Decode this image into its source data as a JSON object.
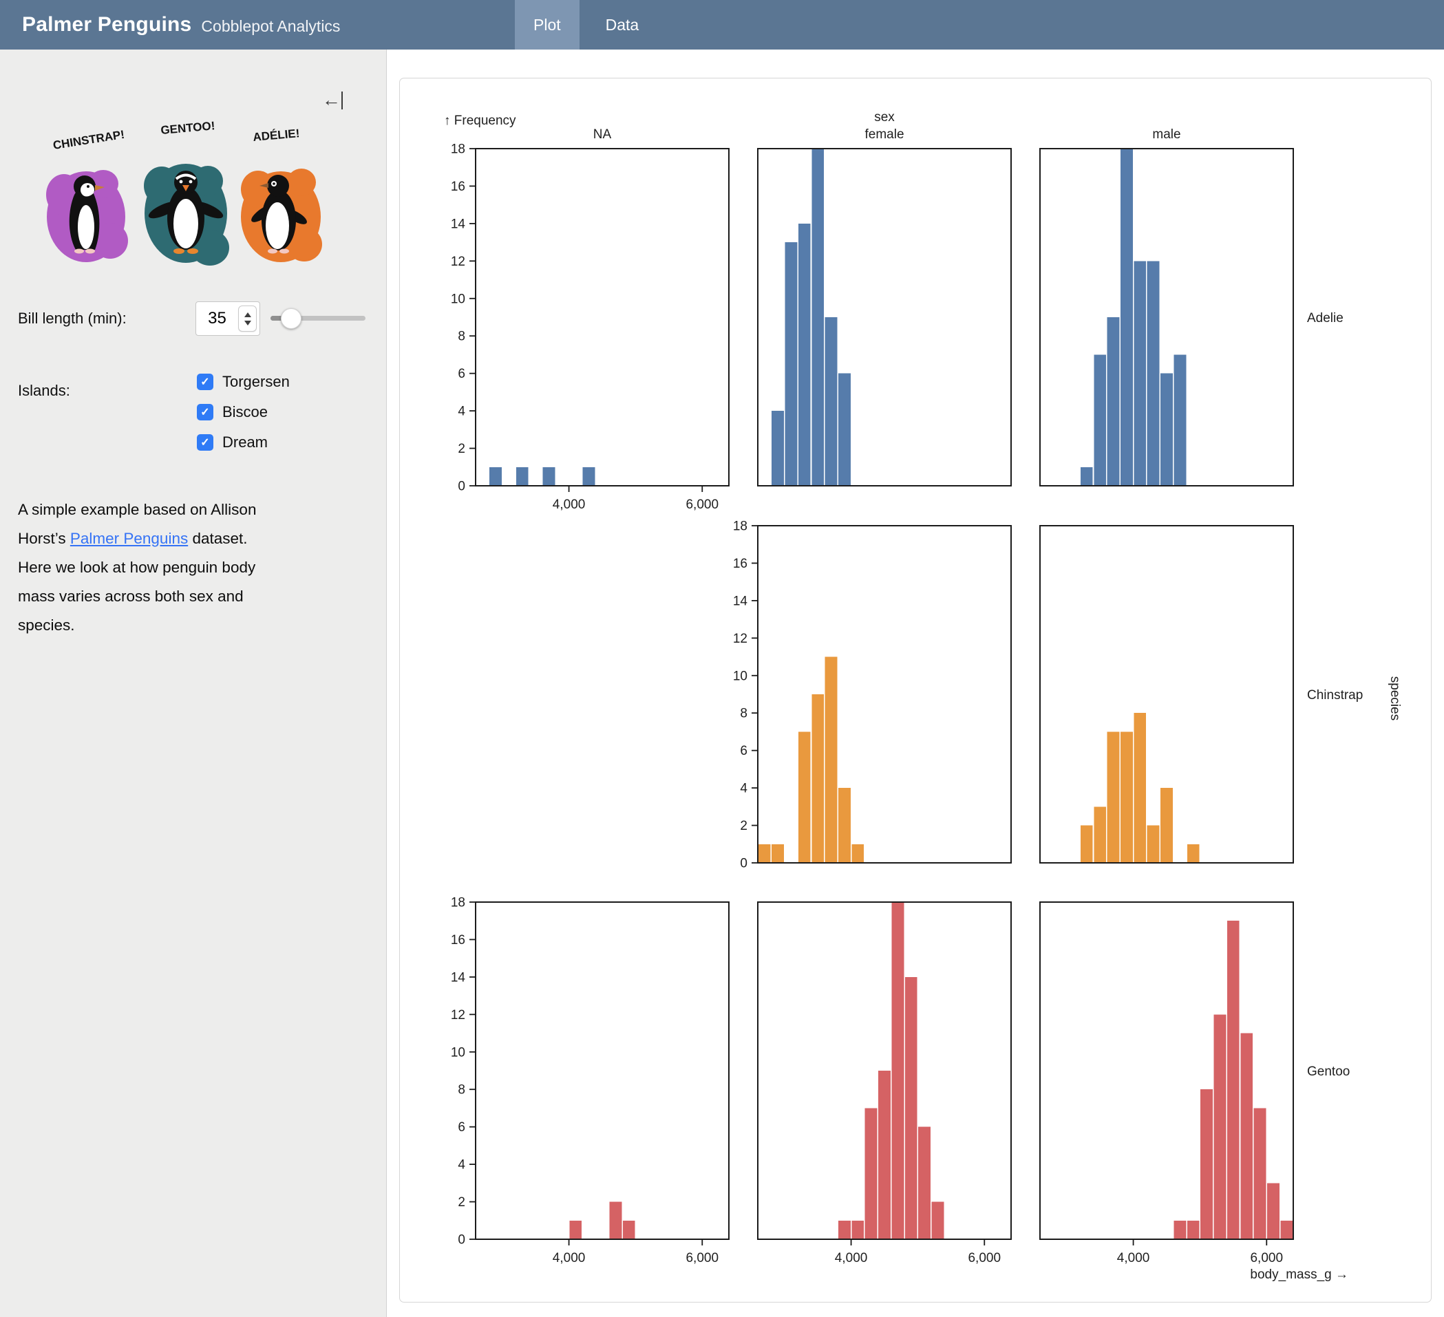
{
  "header": {
    "title": "Palmer Penguins",
    "subtitle": "Cobblepot Analytics",
    "tabs": [
      "Plot",
      "Data"
    ],
    "colors": {
      "bar": "#5b7693",
      "active_tab": "#7e96b2"
    }
  },
  "sidebar": {
    "collapse_icon": "←",
    "artwork": {
      "labels": [
        "CHINSTRAP!",
        "GENTOO!",
        "ADÉLIE!"
      ],
      "splash_colors": [
        "#b15bc4",
        "#2e6b72",
        "#e8792d"
      ]
    },
    "bill_length": {
      "label": "Bill length (min):",
      "value": "35"
    },
    "islands": {
      "label": "Islands:",
      "options": [
        {
          "label": "Torgersen",
          "checked": true
        },
        {
          "label": "Biscoe",
          "checked": true
        },
        {
          "label": "Dream",
          "checked": true
        }
      ]
    },
    "icons": {
      "check": "✓"
    },
    "description": {
      "line1": "A simple example based on Allison",
      "line2_pre": "Horst’s ",
      "line2_link": "Palmer Penguins",
      "line2_post": " dataset.",
      "line3": "Here we look at how penguin body",
      "line4": "mass varies across both sex and",
      "line5": "species."
    }
  },
  "chart_data": {
    "type": "bar",
    "subtype": "faceted-histogram",
    "x_field": "body_mass_g",
    "x_axis_label": "body_mass_g →",
    "y_axis_label": "↑ Frequency",
    "right_axis_label": "species",
    "x_domain": [
      2600,
      6400
    ],
    "y_domain": [
      0,
      18
    ],
    "bin_width": 200,
    "grid": false,
    "x_ticks": [
      {
        "value": 4000,
        "label": "4,000"
      },
      {
        "value": 6000,
        "label": "6,000"
      }
    ],
    "y_tick_step": 2,
    "col_headers": [
      [
        "NA"
      ],
      [
        "sex",
        "female"
      ],
      [
        "male"
      ]
    ],
    "row_labels": [
      "Adelie",
      "Chinstrap",
      "Gentoo"
    ],
    "colors": {
      "Adelie": "#567cab",
      "Chinstrap": "#e9993e",
      "Gentoo": "#d56264"
    },
    "facets": [
      {
        "species": "Adelie",
        "sex": "NA",
        "row": 0,
        "col": 0,
        "x_axis": true,
        "bins": [
          [
            2800,
            1
          ],
          [
            3200,
            1
          ],
          [
            3600,
            1
          ],
          [
            4200,
            1
          ]
        ]
      },
      {
        "species": "Adelie",
        "sex": "female",
        "row": 0,
        "col": 1,
        "bins": [
          [
            2800,
            4
          ],
          [
            3000,
            13
          ],
          [
            3200,
            14
          ],
          [
            3400,
            18
          ],
          [
            3600,
            9
          ],
          [
            3800,
            6
          ]
        ]
      },
      {
        "species": "Adelie",
        "sex": "male",
        "row": 0,
        "col": 2,
        "bins": [
          [
            3200,
            1
          ],
          [
            3400,
            7
          ],
          [
            3600,
            9
          ],
          [
            3800,
            18
          ],
          [
            4000,
            12
          ],
          [
            4200,
            12
          ],
          [
            4400,
            6
          ],
          [
            4600,
            7
          ]
        ]
      },
      {
        "species": "Chinstrap",
        "sex": "female",
        "row": 1,
        "col": 1,
        "bins": [
          [
            2600,
            1
          ],
          [
            2800,
            1
          ],
          [
            3200,
            7
          ],
          [
            3400,
            9
          ],
          [
            3600,
            11
          ],
          [
            3800,
            4
          ],
          [
            4000,
            1
          ]
        ]
      },
      {
        "species": "Chinstrap",
        "sex": "male",
        "row": 1,
        "col": 2,
        "bins": [
          [
            3200,
            2
          ],
          [
            3400,
            3
          ],
          [
            3600,
            7
          ],
          [
            3800,
            7
          ],
          [
            4000,
            8
          ],
          [
            4200,
            2
          ],
          [
            4400,
            4
          ],
          [
            4800,
            1
          ]
        ]
      },
      {
        "species": "Gentoo",
        "sex": "NA",
        "row": 2,
        "col": 0,
        "x_axis": true,
        "bins": [
          [
            4000,
            1
          ],
          [
            4600,
            2
          ],
          [
            4800,
            1
          ]
        ]
      },
      {
        "species": "Gentoo",
        "sex": "female",
        "row": 2,
        "col": 1,
        "x_axis": true,
        "bins": [
          [
            3800,
            1
          ],
          [
            4000,
            1
          ],
          [
            4200,
            7
          ],
          [
            4400,
            9
          ],
          [
            4600,
            18
          ],
          [
            4800,
            14
          ],
          [
            5000,
            6
          ],
          [
            5200,
            2
          ]
        ]
      },
      {
        "species": "Gentoo",
        "sex": "male",
        "row": 2,
        "col": 2,
        "x_axis": true,
        "bins": [
          [
            4600,
            1
          ],
          [
            4800,
            1
          ],
          [
            5000,
            8
          ],
          [
            5200,
            12
          ],
          [
            5400,
            17
          ],
          [
            5600,
            11
          ],
          [
            5800,
            7
          ],
          [
            6000,
            3
          ],
          [
            6200,
            1
          ]
        ]
      }
    ],
    "y_axis_rows": {
      "0": 0,
      "1": 1,
      "2": 0
    }
  }
}
